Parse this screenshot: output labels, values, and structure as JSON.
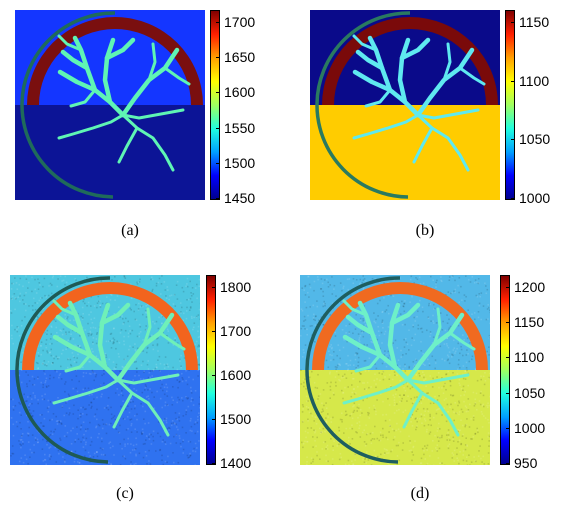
{
  "panels": [
    {
      "id": "a",
      "caption": "(a)",
      "top_color": "#1436ff",
      "bottom_color": "#0c1496",
      "arch_color": "#7a0f0f",
      "vessel_color": "#5ff5b4",
      "ring_color": "#1f6b5a",
      "noise": false,
      "colorbar": {
        "ticks": [
          "1700",
          "1650",
          "1600",
          "1550",
          "1500",
          "1450"
        ]
      }
    },
    {
      "id": "b",
      "caption": "(b)",
      "top_color": "#0a0a8a",
      "bottom_color": "#ffcc00",
      "arch_color": "#7a0a0a",
      "vessel_color": "#5fe9f0",
      "ring_color": "#2a7a60",
      "noise": false,
      "colorbar": {
        "ticks": [
          "1150",
          "1100",
          "1050",
          "1000"
        ]
      }
    },
    {
      "id": "c",
      "caption": "(c)",
      "top_color": "#4ec7e0",
      "bottom_color": "#2f72f0",
      "arch_color": "#f2641e",
      "vessel_color": "#6ff0b8",
      "ring_color": "#1e5a55",
      "noise": true,
      "colorbar": {
        "ticks": [
          "1800",
          "1700",
          "1600",
          "1500",
          "1400"
        ]
      }
    },
    {
      "id": "d",
      "caption": "(d)",
      "top_color": "#52b8e8",
      "bottom_color": "#d6e84a",
      "arch_color": "#f06a20",
      "vessel_color": "#6ef0c8",
      "ring_color": "#1e5e60",
      "noise": true,
      "colorbar": {
        "ticks": [
          "1200",
          "1150",
          "1100",
          "1050",
          "1000",
          "950"
        ]
      }
    }
  ],
  "colormap": {
    "stops": [
      "#00008f",
      "#0000ff",
      "#00a0ff",
      "#20ffdf",
      "#a0ff60",
      "#ffff00",
      "#ffa000",
      "#ff2000",
      "#800000"
    ]
  }
}
